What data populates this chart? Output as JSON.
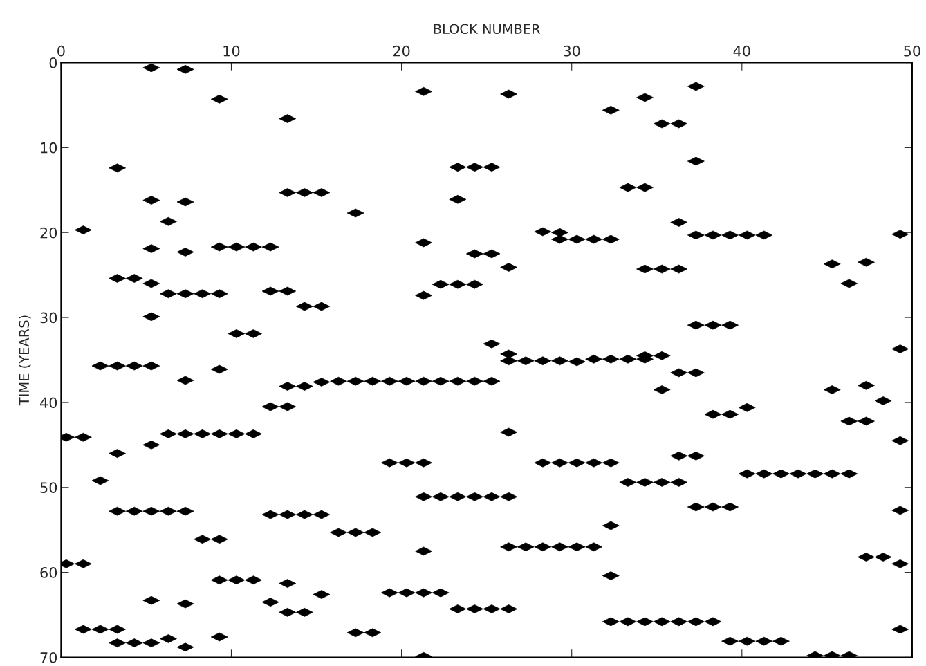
{
  "chart_data": {
    "type": "scatter",
    "xlabel": "BLOCK NUMBER",
    "ylabel": "TIME (YEARS)",
    "xlim": [
      0,
      50
    ],
    "xticks": [
      0,
      10,
      20,
      30,
      40,
      50
    ],
    "ylim": [
      70,
      0
    ],
    "yticks": [
      0,
      10,
      20,
      30,
      40,
      50,
      60,
      70
    ],
    "grid": false,
    "marker": "diamond",
    "series": [
      {
        "color": "#000000",
        "x": [
          5.3,
          7.3,
          21.3,
          26.3,
          37.3,
          34.3,
          9.3,
          32.3,
          13.3,
          35.3,
          36.3,
          37.3,
          23.3,
          24.3,
          25.3,
          3.3,
          33.3,
          34.3,
          13.3,
          14.3,
          15.3,
          23.3,
          5.3,
          7.3,
          17.3,
          6.3,
          1.3,
          36.3,
          28.3,
          29.3,
          49.3,
          37.3,
          38.3,
          39.3,
          40.3,
          41.3,
          29.3,
          30.3,
          31.3,
          32.3,
          21.3,
          5.3,
          9.3,
          10.3,
          11.3,
          12.3,
          7.3,
          24.3,
          25.3,
          47.3,
          45.3,
          26.3,
          34.3,
          35.3,
          36.3,
          3.3,
          4.3,
          5.3,
          46.3,
          22.3,
          23.3,
          24.3,
          12.3,
          13.3,
          6.3,
          7.3,
          8.3,
          9.3,
          21.3,
          14.3,
          15.3,
          5.3,
          37.3,
          38.3,
          39.3,
          10.3,
          11.3,
          25.3,
          49.3,
          26.3,
          34.3,
          35.3,
          31.3,
          32.3,
          33.3,
          34.3,
          26.3,
          27.3,
          28.3,
          29.3,
          30.3,
          2.3,
          3.3,
          4.3,
          5.3,
          9.3,
          36.3,
          37.3,
          7.3,
          15.3,
          16.3,
          17.3,
          18.3,
          19.3,
          20.3,
          21.3,
          22.3,
          23.3,
          24.3,
          25.3,
          13.3,
          14.3,
          47.3,
          35.3,
          45.3,
          48.3,
          12.3,
          13.3,
          40.3,
          38.3,
          39.3,
          46.3,
          47.3,
          26.3,
          6.3,
          7.3,
          8.3,
          9.3,
          10.3,
          11.3,
          0.3,
          1.3,
          49.3,
          5.3,
          3.3,
          36.3,
          37.3,
          19.3,
          20.3,
          21.3,
          28.3,
          29.3,
          30.3,
          31.3,
          32.3,
          40.3,
          41.3,
          42.3,
          43.3,
          44.3,
          45.3,
          46.3,
          2.3,
          33.3,
          34.3,
          35.3,
          36.3,
          21.3,
          22.3,
          23.3,
          24.3,
          25.3,
          26.3,
          49.3,
          37.3,
          38.3,
          39.3,
          3.3,
          4.3,
          5.3,
          6.3,
          7.3,
          12.3,
          13.3,
          14.3,
          15.3,
          32.3,
          16.3,
          17.3,
          18.3,
          8.3,
          9.3,
          26.3,
          27.3,
          28.3,
          29.3,
          30.3,
          31.3,
          21.3,
          47.3,
          48.3,
          0.3,
          1.3,
          49.3,
          32.3,
          9.3,
          10.3,
          11.3,
          13.3,
          19.3,
          20.3,
          21.3,
          22.3,
          15.3,
          5.3,
          12.3,
          7.3,
          23.3,
          24.3,
          25.3,
          26.3,
          13.3,
          14.3,
          32.3,
          33.3,
          34.3,
          35.3,
          36.3,
          37.3,
          38.3,
          1.3,
          2.3,
          3.3,
          49.3,
          17.3,
          18.3,
          9.3,
          6.3,
          39.3,
          40.3,
          41.3,
          42.3,
          3.3,
          4.3,
          5.3,
          7.3,
          44.3,
          45.3,
          46.3,
          21.3
        ],
        "values": [
          0.6,
          0.8,
          3.4,
          3.7,
          2.8,
          4.1,
          4.3,
          5.6,
          6.6,
          7.2,
          7.2,
          11.6,
          12.3,
          12.3,
          12.3,
          12.4,
          14.7,
          14.7,
          15.3,
          15.3,
          15.3,
          16.1,
          16.2,
          16.4,
          17.7,
          18.7,
          19.7,
          18.8,
          19.9,
          20.0,
          20.2,
          20.3,
          20.3,
          20.3,
          20.3,
          20.3,
          20.8,
          20.8,
          20.8,
          20.8,
          21.2,
          21.9,
          21.7,
          21.7,
          21.7,
          21.7,
          22.3,
          22.5,
          22.5,
          23.5,
          23.7,
          24.1,
          24.3,
          24.3,
          24.3,
          25.4,
          25.4,
          26.0,
          26.0,
          26.1,
          26.1,
          26.1,
          26.9,
          26.9,
          27.2,
          27.2,
          27.2,
          27.2,
          27.4,
          28.7,
          28.7,
          29.9,
          30.9,
          30.9,
          30.9,
          31.9,
          31.9,
          33.1,
          33.7,
          34.3,
          34.5,
          34.5,
          34.9,
          34.9,
          34.9,
          34.9,
          35.1,
          35.1,
          35.1,
          35.1,
          35.2,
          35.7,
          35.7,
          35.7,
          35.7,
          36.1,
          36.5,
          36.5,
          37.4,
          37.6,
          37.5,
          37.5,
          37.5,
          37.5,
          37.5,
          37.5,
          37.5,
          37.5,
          37.5,
          37.5,
          38.1,
          38.1,
          38.0,
          38.5,
          38.5,
          39.8,
          40.5,
          40.5,
          40.6,
          41.4,
          41.4,
          42.2,
          42.2,
          43.5,
          43.7,
          43.7,
          43.7,
          43.7,
          43.7,
          43.7,
          44.1,
          44.1,
          44.5,
          45.0,
          46.0,
          46.3,
          46.3,
          47.1,
          47.1,
          47.1,
          47.1,
          47.1,
          47.1,
          47.1,
          47.1,
          48.4,
          48.4,
          48.4,
          48.4,
          48.4,
          48.4,
          48.4,
          49.2,
          49.4,
          49.4,
          49.4,
          49.4,
          51.1,
          51.1,
          51.1,
          51.1,
          51.1,
          51.1,
          52.7,
          52.3,
          52.3,
          52.3,
          52.8,
          52.8,
          52.8,
          52.8,
          52.8,
          53.2,
          53.2,
          53.2,
          53.2,
          54.5,
          55.3,
          55.3,
          55.3,
          56.1,
          56.1,
          57.0,
          57.0,
          57.0,
          57.0,
          57.0,
          57.0,
          57.5,
          58.2,
          58.2,
          59.0,
          59.0,
          59.0,
          60.4,
          60.9,
          60.9,
          60.9,
          61.3,
          62.4,
          62.4,
          62.4,
          62.4,
          62.6,
          63.3,
          63.5,
          63.7,
          64.3,
          64.3,
          64.3,
          64.3,
          64.7,
          64.7,
          65.8,
          65.8,
          65.8,
          65.8,
          65.8,
          65.8,
          65.8,
          66.7,
          66.7,
          66.7,
          66.7,
          67.1,
          67.1,
          67.6,
          67.8,
          68.1,
          68.1,
          68.1,
          68.1,
          68.3,
          68.3,
          68.3,
          68.8,
          69.8,
          69.8,
          69.8,
          69.9
        ]
      }
    ]
  }
}
